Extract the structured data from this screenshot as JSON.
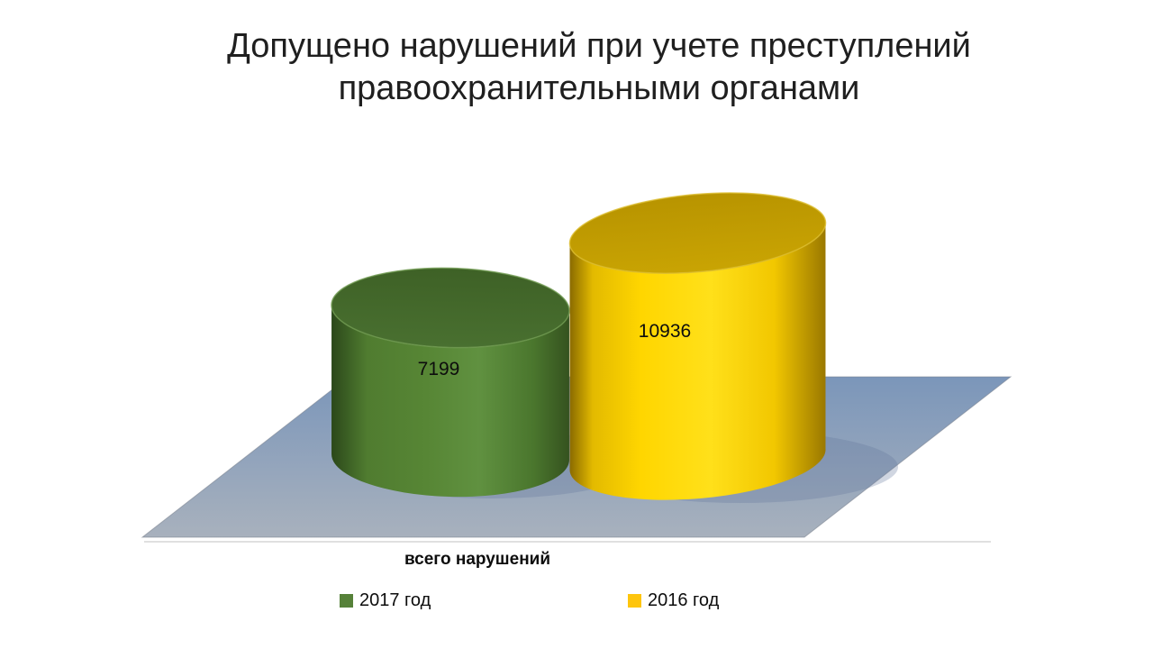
{
  "chart_data": {
    "type": "bar",
    "subtype": "cylinder-3d",
    "title": "Допущено нарушений при учете преступлений\nправоохранительными органами",
    "categories": [
      "всего нарушений"
    ],
    "series": [
      {
        "name": "2017 год",
        "values": [
          7199
        ],
        "color": "#578635",
        "top_color": "#426628",
        "edge_dark": "#2b481a",
        "rim_light": "#6f9a50"
      },
      {
        "name": "2016 год",
        "values": [
          10936
        ],
        "color": "#ffd600",
        "top_color": "#bf9a02",
        "edge_dark": "#8a6b00",
        "rim_light": "#dcbd2e"
      }
    ],
    "legend_position": "bottom",
    "floor_colors": {
      "far": "#7b96ba",
      "near": "#a8b1bd"
    },
    "background": "#ffffff"
  }
}
